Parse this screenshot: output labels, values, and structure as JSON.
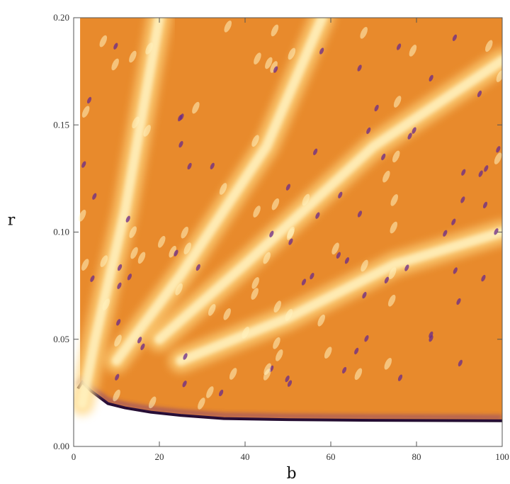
{
  "chart_data": {
    "type": "heatmap",
    "title": "",
    "xlabel": "b",
    "ylabel": "r",
    "xlim": [
      0,
      100
    ],
    "ylim": [
      0,
      0.2
    ],
    "xticks": [
      0,
      20,
      40,
      60,
      80,
      100
    ],
    "xtick_labels": [
      "0",
      "20",
      "40",
      "60",
      "80",
      "100"
    ],
    "yticks": [
      0,
      0.05,
      0.1,
      0.15,
      0.2
    ],
    "ytick_labels": [
      "0.00",
      "0.05",
      "0.10",
      "0.15",
      "0.20"
    ],
    "colormap": [
      "#ffffff",
      "#fff2c0",
      "#ffd680",
      "#ff9a3c",
      "#e46a1c",
      "#6a2a8a",
      "#1e0a2a"
    ],
    "background_color": "#e88a2c",
    "lower_boundary": {
      "b": [
        1,
        2,
        4,
        8,
        12,
        18,
        25,
        35,
        50,
        70,
        100
      ],
      "r": [
        0.027,
        0.03,
        0.026,
        0.02,
        0.018,
        0.016,
        0.0145,
        0.013,
        0.0125,
        0.0122,
        0.012
      ]
    },
    "bright_bands": [
      {
        "b": [
          2,
          5,
          12,
          20
        ],
        "r": [
          0.02,
          0.05,
          0.11,
          0.2
        ]
      },
      {
        "b": [
          10,
          25,
          45,
          58
        ],
        "r": [
          0.04,
          0.08,
          0.14,
          0.2
        ]
      },
      {
        "b": [
          20,
          40,
          70,
          100
        ],
        "r": [
          0.05,
          0.085,
          0.14,
          0.18
        ]
      },
      {
        "b": [
          25,
          50,
          75,
          100
        ],
        "r": [
          0.04,
          0.06,
          0.085,
          0.1
        ]
      }
    ]
  }
}
